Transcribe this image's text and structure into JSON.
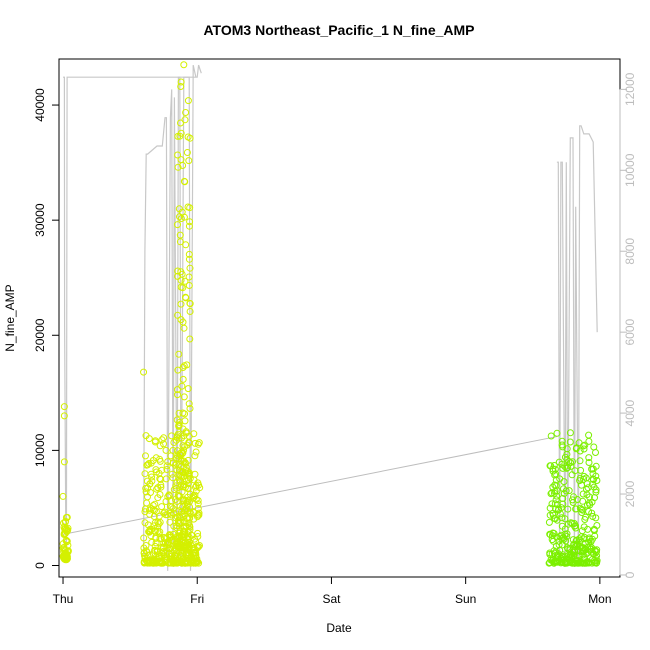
{
  "chart_data": {
    "type": "scatter",
    "title": "ATOM3 Northeast_Pacific_1 N_fine_AMP",
    "xlabel": "Date",
    "ylabel": "N_fine_AMP",
    "x_ticks": [
      "Thu",
      "Fri",
      "Sat",
      "Sun",
      "Mon"
    ],
    "x_tick_values": [
      0,
      1,
      2,
      3,
      4
    ],
    "xlim": [
      -0.03,
      4.15
    ],
    "y_ticks": [
      0,
      10000,
      20000,
      30000,
      40000
    ],
    "ylim": [
      -1000,
      44000
    ],
    "y2_ticks": [
      0,
      2000,
      4000,
      6000,
      8000,
      10000,
      12000
    ],
    "y2lim": [
      -50,
      12750
    ],
    "grid": false,
    "legend": "none",
    "colors": {
      "points_early": "#d4f000",
      "points_late": "#7cf000",
      "secondary_line": "#c8c8c8",
      "trend_line": "#bdbdbd",
      "axis": "#000000",
      "axis_right": "#bdbdbd"
    },
    "trend_line": {
      "x": [
        0.0,
        3.68
      ],
      "y": [
        2700,
        11200
      ]
    },
    "secondary_series": {
      "name": "",
      "axis": "right",
      "x": [
        0.0,
        0.01,
        0.012,
        0.02,
        0.025,
        0.03,
        0.04,
        0.05,
        0.06,
        0.07,
        0.08,
        0.9,
        0.95,
        0.96,
        1.0,
        1.01,
        1.02,
        1.03
      ],
      "y": [
        12300,
        12300,
        6200,
        1500,
        300,
        12300,
        12300,
        12300,
        12300,
        12300,
        12300,
        12300,
        12300,
        12300,
        12300,
        12600,
        12500,
        12400
      ]
    },
    "secondary_series_b": {
      "axis": "right",
      "x": [
        0.6,
        0.61,
        0.62,
        0.63,
        0.7,
        0.74,
        0.76,
        0.77,
        0.78,
        0.8,
        0.81,
        0.82,
        0.83,
        0.85,
        0.86,
        0.87,
        0.88,
        0.9,
        0.92,
        0.94,
        0.95,
        0.97,
        0.99
      ],
      "y": [
        500,
        8000,
        10400,
        10400,
        10600,
        10600,
        11300,
        11300,
        100,
        11300,
        12000,
        200,
        11800,
        300,
        12300,
        12300,
        200,
        12300,
        12300,
        12300,
        100,
        12600,
        12300
      ]
    },
    "secondary_series_c": {
      "axis": "right",
      "x": [
        3.68,
        3.69,
        3.7,
        3.71,
        3.72,
        3.74,
        3.75,
        3.76,
        3.78,
        3.8,
        3.81,
        3.82,
        3.84,
        3.85,
        3.86,
        3.88,
        3.9,
        3.92,
        3.95,
        3.98
      ],
      "y": [
        10200,
        10200,
        300,
        10200,
        10200,
        200,
        10200,
        300,
        10800,
        10800,
        200,
        9100,
        300,
        11100,
        11100,
        10900,
        10900,
        10900,
        10700,
        6000
      ]
    },
    "scatter_clusters": [
      {
        "x_range": [
          0.0,
          0.04
        ],
        "y_range": [
          500,
          4200
        ],
        "count": 60,
        "color_key": "points_early"
      },
      {
        "x_range": [
          0.6,
          1.02
        ],
        "y_range": [
          200,
          11500
        ],
        "count": 420,
        "color_key": "points_early"
      },
      {
        "x_range": [
          0.85,
          0.95
        ],
        "y_range": [
          1500,
          42000
        ],
        "count": 180,
        "color_key": "points_early"
      },
      {
        "x_range": [
          3.62,
          3.98
        ],
        "y_range": [
          200,
          11600
        ],
        "count": 320,
        "color_key": "points_late"
      }
    ],
    "outliers": [
      {
        "x": 0.01,
        "y": 13800
      },
      {
        "x": 0.01,
        "y": 13000
      },
      {
        "x": 0.01,
        "y": 9000
      },
      {
        "x": 0.0,
        "y": 6000
      },
      {
        "x": 0.6,
        "y": 16800
      },
      {
        "x": 0.9,
        "y": 43500
      },
      {
        "x": 0.88,
        "y": 42000
      }
    ]
  }
}
